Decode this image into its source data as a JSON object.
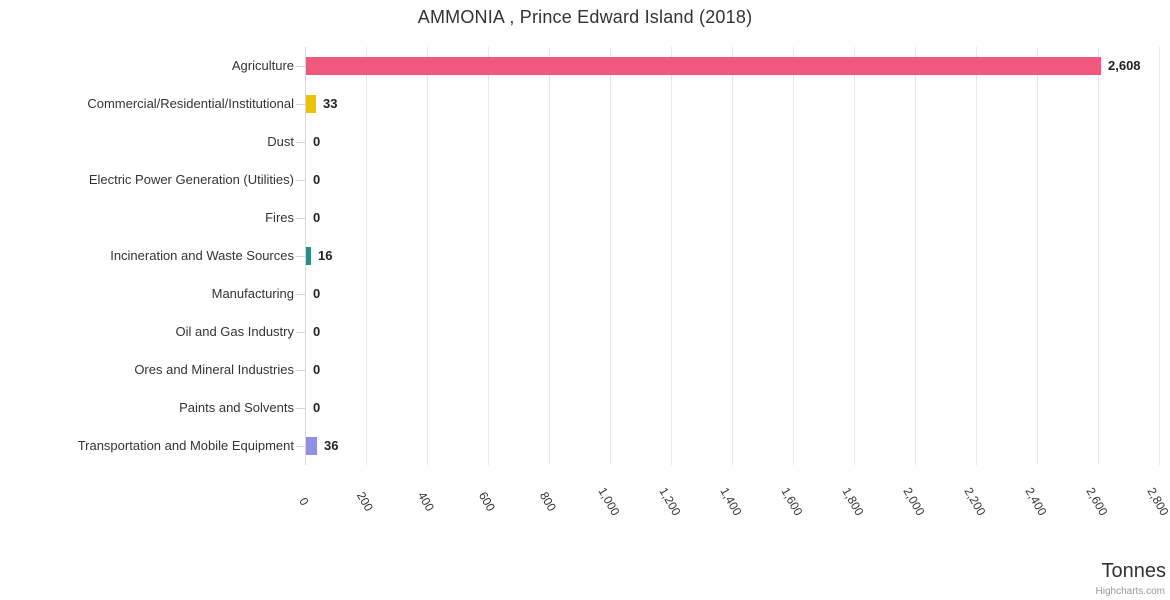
{
  "header": {
    "title": "AMMONIA , Prince Edward Island (2018)"
  },
  "credits": {
    "label": "Highcharts.com"
  },
  "chart_data": {
    "type": "bar",
    "orientation": "horizontal",
    "title": "AMMONIA , Prince Edward Island (2018)",
    "value_axis_title": "Tonnes",
    "categories": [
      "Agriculture",
      "Commercial/Residential/Institutional",
      "Dust",
      "Electric Power Generation (Utilities)",
      "Fires",
      "Incineration and Waste Sources",
      "Manufacturing",
      "Oil and Gas Industry",
      "Ores and Mineral Industries",
      "Paints and Solvents",
      "Transportation and Mobile Equipment"
    ],
    "values": [
      2608,
      33,
      0,
      0,
      0,
      16,
      0,
      0,
      0,
      0,
      36
    ],
    "value_labels": [
      "2,608",
      "33",
      "0",
      "0",
      "0",
      "16",
      "0",
      "0",
      "0",
      "0",
      "36"
    ],
    "bar_colors": [
      "#f0587e",
      "#ecc206",
      null,
      null,
      null,
      "#2e8b8a",
      null,
      null,
      null,
      null,
      "#8f90e0"
    ],
    "value_axis": {
      "min": 0,
      "max": 2800,
      "tick_interval": 200,
      "tick_labels": [
        "0",
        "200",
        "400",
        "600",
        "800",
        "1,000",
        "1,200",
        "1,400",
        "1,600",
        "1,800",
        "2,000",
        "2,200",
        "2,400",
        "2,600",
        "2,800"
      ],
      "label_rotation_deg": 60
    },
    "grid": true,
    "legend": false
  },
  "colors": {
    "title_text": "#333333",
    "category_text": "#333333",
    "value_label_text": "#222222",
    "axis_label_text": "#333333",
    "gridline": "#e6e6e6",
    "axis_line": "#ccd6eb",
    "tick": "#ccd6eb",
    "axis_title_text": "#333333",
    "credits_text": "#999999"
  }
}
